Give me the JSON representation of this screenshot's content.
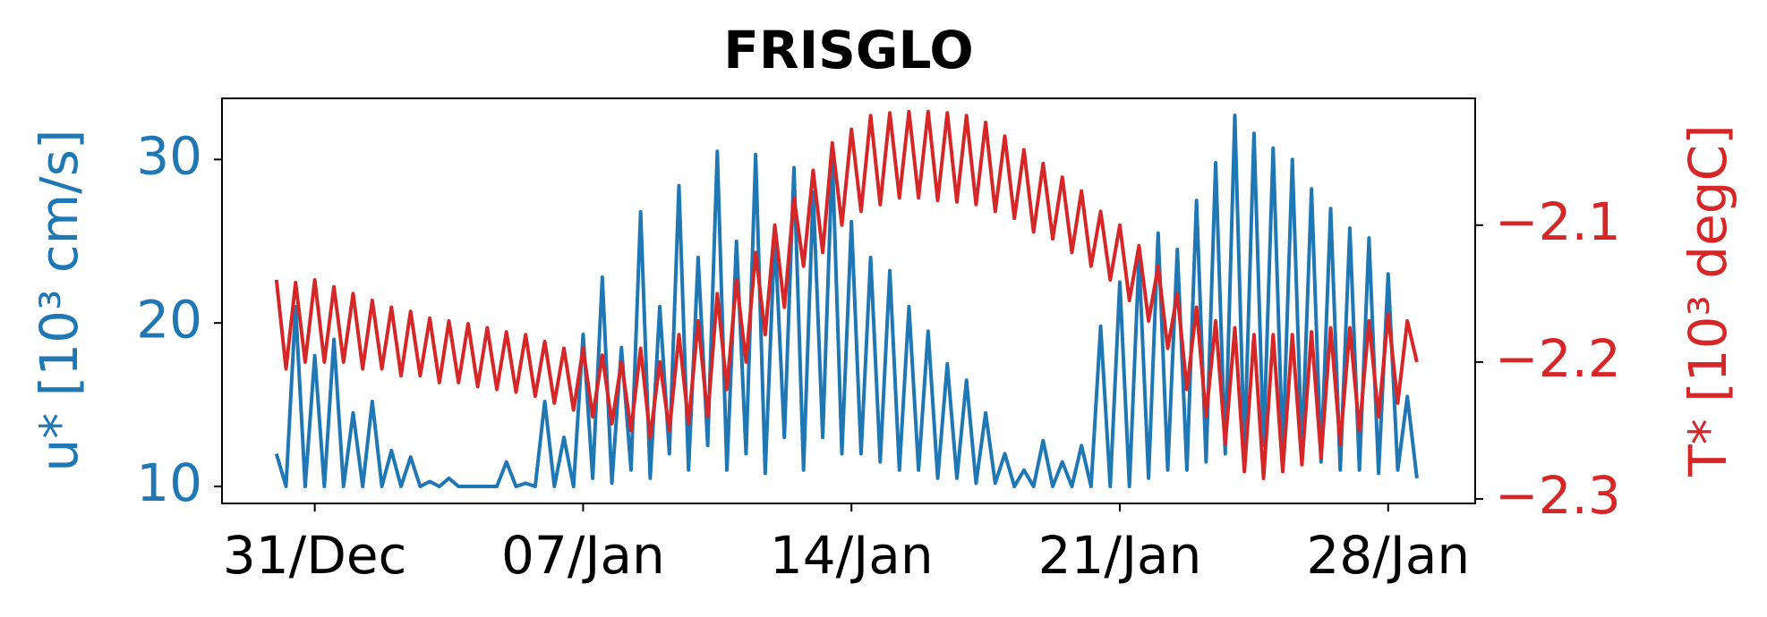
{
  "chart_data": {
    "type": "line",
    "title": "FRISGLO",
    "ylabel": "u* [10³ cm/s]",
    "y2label": "T* [10³ degC]",
    "x": [
      -1,
      -0.75,
      -0.5,
      -0.25,
      0,
      0.25,
      0.5,
      0.75,
      1,
      1.25,
      1.5,
      1.75,
      2,
      2.25,
      2.5,
      2.75,
      3,
      3.25,
      3.5,
      3.75,
      4,
      4.25,
      4.5,
      4.75,
      5,
      5.25,
      5.5,
      5.75,
      6,
      6.25,
      6.5,
      6.75,
      7,
      7.25,
      7.5,
      7.75,
      8,
      8.25,
      8.5,
      8.75,
      9,
      9.25,
      9.5,
      9.75,
      10,
      10.25,
      10.5,
      10.75,
      11,
      11.25,
      11.5,
      11.75,
      12,
      12.25,
      12.5,
      12.75,
      13,
      13.25,
      13.5,
      13.75,
      14,
      14.25,
      14.5,
      14.75,
      15,
      15.25,
      15.5,
      15.75,
      16,
      16.25,
      16.5,
      16.75,
      17,
      17.25,
      17.5,
      17.75,
      18,
      18.25,
      18.5,
      18.75,
      19,
      19.25,
      19.5,
      19.75,
      20,
      20.25,
      20.5,
      20.75,
      21,
      21.25,
      21.5,
      21.75,
      22,
      22.25,
      22.5,
      22.75,
      23,
      23.25,
      23.5,
      23.75,
      24,
      24.25,
      24.5,
      24.75,
      25,
      25.25,
      25.5,
      25.75,
      26,
      26.25,
      26.5,
      26.75,
      27,
      27.25,
      27.5,
      27.75,
      28,
      28.25,
      28.5,
      28.75
    ],
    "xlim": [
      -2.42,
      30.27
    ],
    "xticks": [
      {
        "value": 0,
        "label": "31/Dec"
      },
      {
        "value": 7,
        "label": "07/Jan"
      },
      {
        "value": 14,
        "label": "14/Jan"
      },
      {
        "value": 21,
        "label": "21/Jan"
      },
      {
        "value": 28,
        "label": "28/Jan"
      }
    ],
    "ylim": [
      8.96,
      33.74
    ],
    "yticks": [
      10,
      20,
      30
    ],
    "y2lim": [
      -2.3033,
      -2.0074
    ],
    "y2ticks": [
      {
        "value": -2.3,
        "label": "−2.3"
      },
      {
        "value": -2.2,
        "label": "−2.2"
      },
      {
        "value": -2.1,
        "label": "−2.1"
      }
    ],
    "series": [
      {
        "color": "#1f77b4",
        "axis": "y",
        "values": [
          12,
          10,
          21,
          10,
          18,
          10,
          19,
          10,
          14.5,
          10,
          15.2,
          10,
          12.2,
          10,
          11.8,
          10,
          10.3,
          10,
          10.5,
          10,
          10,
          10,
          10,
          10,
          11.5,
          10,
          10.2,
          10,
          15.2,
          10,
          13,
          10,
          19.3,
          10.5,
          22.8,
          10.2,
          18.5,
          11,
          26.8,
          10.5,
          21,
          12,
          28.4,
          11,
          24,
          12.5,
          30.5,
          11,
          25,
          12,
          30.3,
          10.8,
          25.5,
          13,
          29.5,
          11,
          28,
          13,
          30.2,
          12,
          26.2,
          12,
          24,
          11.5,
          23.2,
          11,
          21,
          11,
          19.5,
          10.5,
          17.5,
          10.5,
          16.5,
          10.2,
          14.5,
          10.2,
          12,
          10,
          11,
          10,
          12.8,
          10,
          11.5,
          10,
          12.5,
          10,
          19.8,
          10,
          22.5,
          10,
          24,
          10.5,
          25.5,
          11,
          24.5,
          11,
          27.5,
          11.5,
          29.8,
          12,
          32.7,
          12,
          31.6,
          12.5,
          30.7,
          12,
          30,
          12,
          28.2,
          11.5,
          27,
          11,
          25.8,
          11,
          25.2,
          10.8,
          23,
          11,
          15.5,
          10.5
        ]
      },
      {
        "color": "#d62728",
        "axis": "y2",
        "values": [
          -2.14,
          -2.205,
          -2.142,
          -2.2,
          -2.14,
          -2.2,
          -2.145,
          -2.2,
          -2.15,
          -2.205,
          -2.155,
          -2.205,
          -2.16,
          -2.21,
          -2.163,
          -2.21,
          -2.168,
          -2.215,
          -2.17,
          -2.215,
          -2.172,
          -2.218,
          -2.175,
          -2.22,
          -2.178,
          -2.222,
          -2.18,
          -2.225,
          -2.185,
          -2.23,
          -2.19,
          -2.235,
          -2.19,
          -2.24,
          -2.195,
          -2.245,
          -2.2,
          -2.25,
          -2.19,
          -2.255,
          -2.2,
          -2.25,
          -2.18,
          -2.245,
          -2.17,
          -2.24,
          -2.15,
          -2.22,
          -2.14,
          -2.2,
          -2.12,
          -2.18,
          -2.1,
          -2.16,
          -2.08,
          -2.13,
          -2.06,
          -2.12,
          -2.04,
          -2.1,
          -2.03,
          -2.09,
          -2.02,
          -2.085,
          -2.018,
          -2.08,
          -2.017,
          -2.08,
          -2.017,
          -2.082,
          -2.018,
          -2.083,
          -2.02,
          -2.085,
          -2.025,
          -2.09,
          -2.035,
          -2.095,
          -2.045,
          -2.105,
          -2.055,
          -2.11,
          -2.065,
          -2.12,
          -2.075,
          -2.13,
          -2.09,
          -2.14,
          -2.1,
          -2.155,
          -2.115,
          -2.17,
          -2.13,
          -2.19,
          -2.15,
          -2.22,
          -2.16,
          -2.24,
          -2.17,
          -2.26,
          -2.175,
          -2.28,
          -2.18,
          -2.285,
          -2.18,
          -2.28,
          -2.18,
          -2.275,
          -2.178,
          -2.27,
          -2.175,
          -2.26,
          -2.175,
          -2.25,
          -2.17,
          -2.24,
          -2.165,
          -2.23,
          -2.17,
          -2.2
        ]
      }
    ]
  }
}
